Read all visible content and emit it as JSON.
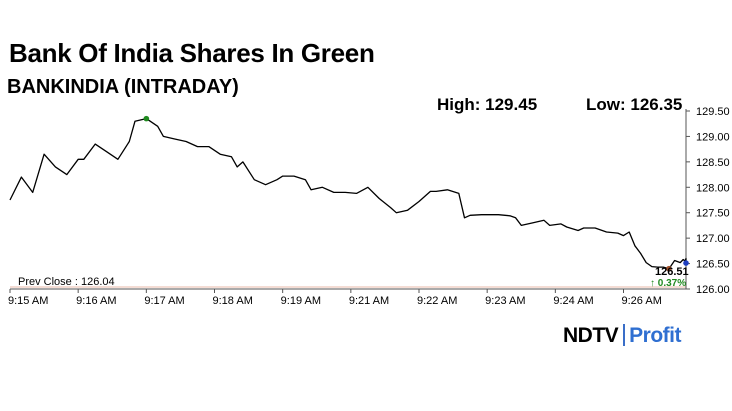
{
  "chart_data": {
    "type": "line",
    "title": "Bank Of India Shares In Green",
    "subtitle": "BANKINDIA (INTRADAY)",
    "high_label": "High: 129.45",
    "low_label": "Low: 126.35",
    "prev_close_label": "Prev Close : 126.04",
    "prev_close": 126.04,
    "last_price_label": "126.51",
    "change_label": "↑ 0.37%",
    "ylim": [
      126.0,
      129.5
    ],
    "y_ticks": [
      "129.50",
      "129.00",
      "128.50",
      "128.00",
      "127.50",
      "127.00",
      "126.50",
      "126.00"
    ],
    "y_tick_values": [
      129.5,
      129.0,
      128.5,
      128.0,
      127.5,
      127.0,
      126.5,
      126.0
    ],
    "x_ticks": [
      "9:15 AM",
      "9:16 AM",
      "9:17 AM",
      "9:18 AM",
      "9:19 AM",
      "9:21 AM",
      "9:22 AM",
      "9:23 AM",
      "9:24 AM",
      "9:26 AM"
    ],
    "x_tick_index": [
      0,
      12,
      24,
      36,
      48,
      60,
      72,
      84,
      96,
      108
    ],
    "x_max_index": 119,
    "series": [
      {
        "values": [
          127.75,
          128.2,
          127.9,
          128.65,
          128.4,
          128.25,
          128.55,
          128.55,
          128.85,
          128.7,
          128.55,
          128.9,
          129.3,
          129.35,
          129.2,
          129.0,
          128.95,
          128.9,
          128.8,
          128.8,
          128.65,
          128.6,
          128.4,
          128.5,
          128.15,
          128.05,
          128.15,
          128.22,
          128.22,
          128.15,
          127.95,
          128.0,
          127.9,
          127.9,
          127.88,
          128.0,
          127.78,
          127.6,
          127.5,
          127.55,
          127.72,
          127.92,
          127.92,
          127.95,
          127.88,
          127.4,
          127.45,
          127.46,
          127.46,
          127.46,
          127.44,
          127.4,
          127.25,
          127.3,
          127.35,
          127.25,
          127.28,
          127.22,
          127.15,
          127.2,
          127.2,
          127.12,
          127.1,
          127.05,
          127.12,
          126.85,
          126.7,
          126.52,
          126.44,
          126.43,
          126.43,
          126.4,
          126.56,
          126.52,
          126.58,
          126.55,
          126.6,
          126.51
        ],
        "x_index": [
          0,
          2,
          4,
          6,
          8,
          10,
          12,
          13,
          15,
          17,
          19,
          21,
          22,
          24,
          26,
          27,
          29,
          31,
          33,
          35,
          37,
          39,
          40,
          41,
          43,
          45,
          47,
          48,
          50,
          52,
          53,
          55,
          57,
          59,
          61,
          63,
          65,
          67,
          68,
          70,
          72,
          74,
          75,
          77,
          79,
          80,
          81,
          83,
          85,
          86,
          88,
          89,
          90,
          92,
          94,
          95,
          97,
          98,
          100,
          101,
          103,
          105,
          107,
          108,
          109,
          110,
          111,
          112,
          113,
          114,
          115,
          116,
          117,
          118,
          118.5,
          118.8,
          119,
          119
        ]
      }
    ],
    "colors": {
      "line": "#000000",
      "high_marker": "#1f8a1f",
      "low_marker": "#a0522d",
      "last_marker": "#1f3fbf",
      "prev_close_line": "#e8b8a8",
      "change_up": "#1f8a1f",
      "axis": "#555555"
    },
    "grid": false,
    "legend": "none"
  },
  "brand": {
    "ndtv": "NDTV",
    "profit": "Profit"
  }
}
